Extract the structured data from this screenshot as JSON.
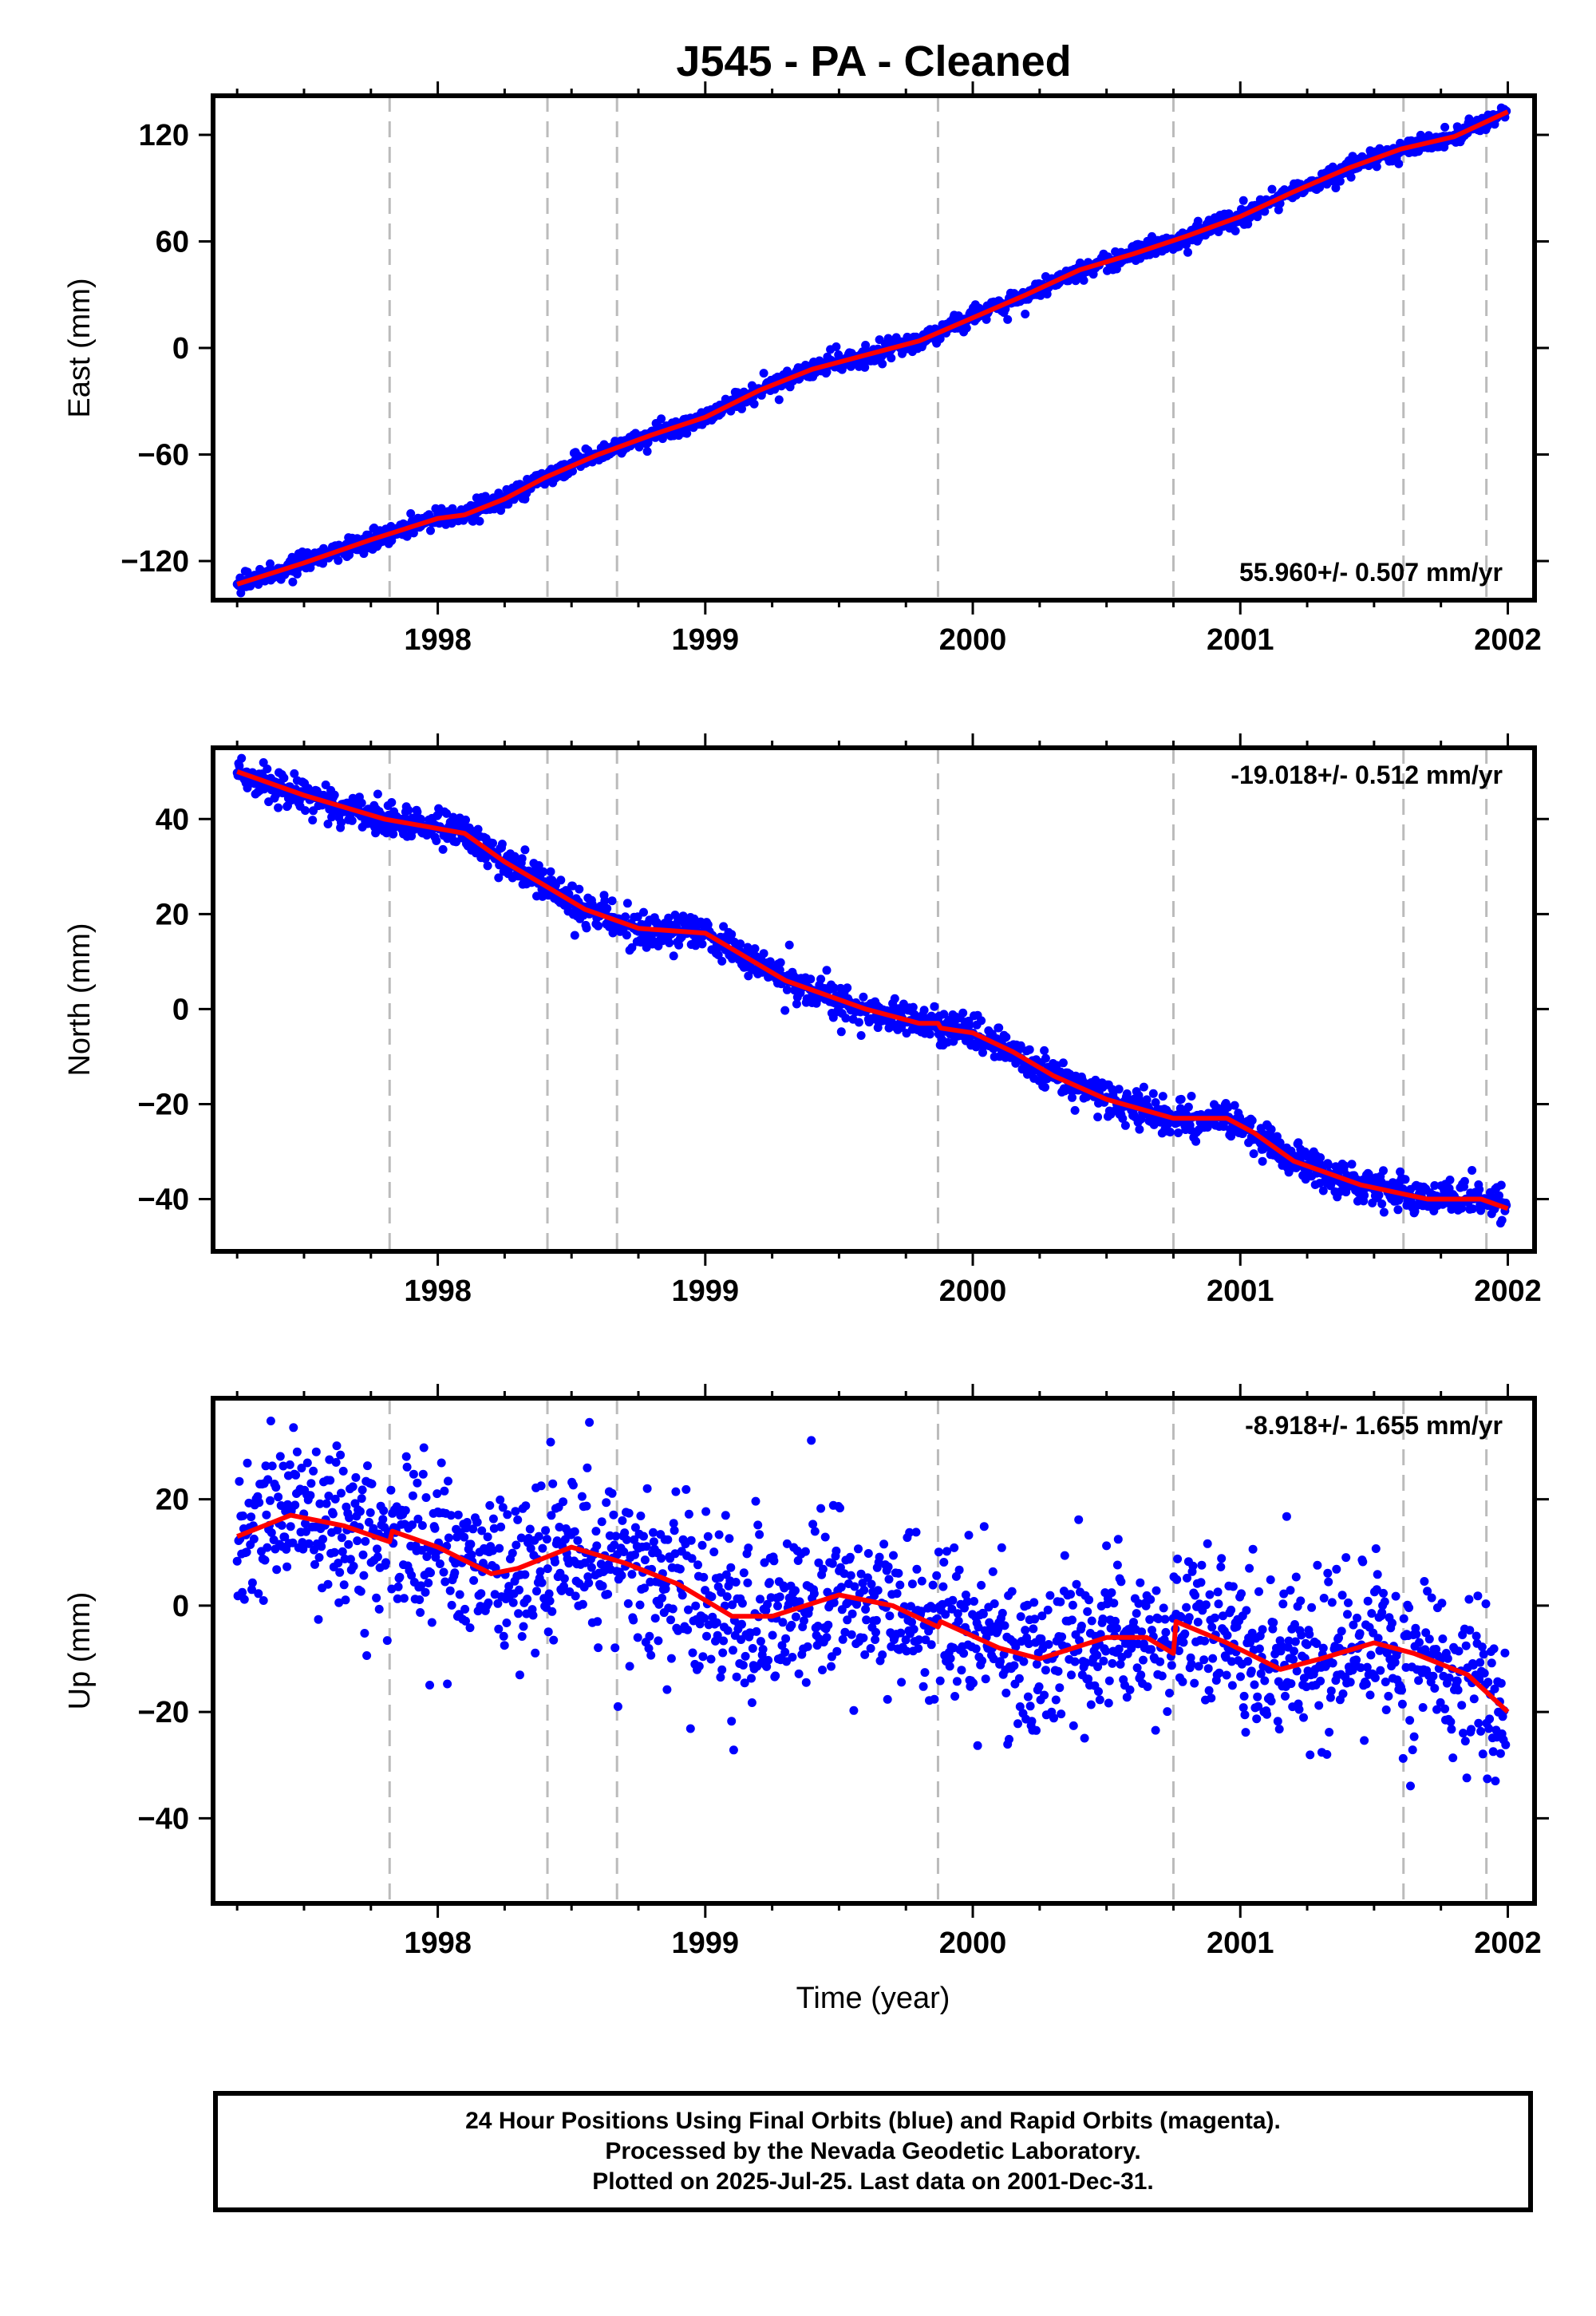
{
  "title": "J545  - PA - Cleaned",
  "xlabel": "Time (year)",
  "caption": [
    "24 Hour Positions Using Final Orbits (blue) and Rapid Orbits (magenta).",
    "Processed by the Nevada Geodetic Laboratory.",
    "Plotted on 2025-Jul-25. Last data on 2001-Dec-31."
  ],
  "colors": {
    "points": "#0000ff",
    "model": "#ff0000",
    "breaks": "#bbbbbb",
    "axis": "#000000"
  },
  "chart_data": [
    {
      "type": "scatter",
      "name": "east",
      "ylabel": "East (mm)",
      "rate_label": "55.960+/- 0.507 mm/yr",
      "xlim": [
        1997.16,
        2002.1
      ],
      "ylim": [
        -142,
        142
      ],
      "x_ticks": [
        "1998",
        "1999",
        "2000",
        "2001",
        "2002"
      ],
      "y_ticks": [
        "120",
        "60",
        "0",
        "−60",
        "−120"
      ],
      "y_tick_values": [
        120,
        60,
        0,
        -60,
        -120
      ],
      "x_start": 1997.25,
      "x_end": 2001.997,
      "breaks": [
        1997.82,
        1998.41,
        1998.67,
        1999.87,
        2000.75,
        2001.61,
        2001.92
      ],
      "model": [
        [
          1997.25,
          -133
        ],
        [
          1997.5,
          -121
        ],
        [
          1997.75,
          -108
        ],
        [
          1998.0,
          -96
        ],
        [
          1998.1,
          -94
        ],
        [
          1998.25,
          -85
        ],
        [
          1998.4,
          -73
        ],
        [
          1998.6,
          -60
        ],
        [
          1998.8,
          -49
        ],
        [
          1999.0,
          -39
        ],
        [
          1999.2,
          -24
        ],
        [
          1999.4,
          -12
        ],
        [
          1999.6,
          -4
        ],
        [
          1999.8,
          4
        ],
        [
          2000.0,
          17
        ],
        [
          2000.2,
          30
        ],
        [
          2000.4,
          44
        ],
        [
          2000.6,
          53
        ],
        [
          2000.8,
          63
        ],
        [
          2001.0,
          74
        ],
        [
          2001.2,
          88
        ],
        [
          2001.4,
          101
        ],
        [
          2001.6,
          112
        ],
        [
          2001.8,
          119
        ],
        [
          2002.0,
          133
        ]
      ],
      "noise": 2.5,
      "outlier_rate": 0.01,
      "outlier_size": 10
    },
    {
      "type": "scatter",
      "name": "north",
      "ylabel": "North (mm)",
      "rate_label": "-19.018+/- 0.512 mm/yr",
      "xlim": [
        1997.16,
        2002.1
      ],
      "ylim": [
        -51,
        55
      ],
      "x_ticks": [
        "1998",
        "1999",
        "2000",
        "2001",
        "2002"
      ],
      "y_ticks": [
        "40",
        "20",
        "0",
        "−20",
        "−40"
      ],
      "y_tick_values": [
        40,
        20,
        0,
        -20,
        -40
      ],
      "x_start": 1997.25,
      "x_end": 2001.997,
      "breaks": [
        1997.82,
        1998.41,
        1998.67,
        1999.87,
        2000.75,
        2001.61,
        2001.92
      ],
      "model": [
        [
          1997.25,
          50
        ],
        [
          1997.5,
          45
        ],
        [
          1997.8,
          40
        ],
        [
          1998.0,
          38
        ],
        [
          1998.1,
          37
        ],
        [
          1998.25,
          31
        ],
        [
          1998.4,
          26
        ],
        [
          1998.55,
          21
        ],
        [
          1998.75,
          17
        ],
        [
          1999.0,
          16
        ],
        [
          1999.15,
          11
        ],
        [
          1999.3,
          6
        ],
        [
          1999.6,
          0
        ],
        [
          1999.8,
          -3
        ],
        [
          1999.87,
          -3
        ],
        [
          1999.88,
          -4
        ],
        [
          2000.0,
          -5
        ],
        [
          2000.15,
          -9
        ],
        [
          2000.3,
          -14
        ],
        [
          2000.5,
          -19
        ],
        [
          2000.75,
          -23
        ],
        [
          2000.95,
          -23
        ],
        [
          2001.05,
          -26
        ],
        [
          2001.2,
          -32
        ],
        [
          2001.45,
          -37
        ],
        [
          2001.7,
          -40
        ],
        [
          2001.9,
          -40
        ],
        [
          2002.0,
          -42
        ]
      ],
      "noise": 1.8,
      "outlier_rate": 0.01,
      "outlier_size": 6
    },
    {
      "type": "scatter",
      "name": "up",
      "ylabel": "Up (mm)",
      "rate_label": "-8.918+/- 1.655 mm/yr",
      "xlim": [
        1997.16,
        2002.1
      ],
      "ylim": [
        -56,
        39
      ],
      "x_ticks": [
        "1998",
        "1999",
        "2000",
        "2001",
        "2002"
      ],
      "y_ticks": [
        "20",
        "0",
        "−20",
        "−40"
      ],
      "y_tick_values": [
        20,
        0,
        -20,
        -40
      ],
      "x_start": 1997.25,
      "x_end": 2001.997,
      "breaks": [
        1997.82,
        1998.41,
        1998.67,
        1999.87,
        2000.75,
        2001.61,
        2001.92
      ],
      "model": [
        [
          1997.25,
          13
        ],
        [
          1997.45,
          17
        ],
        [
          1997.65,
          15
        ],
        [
          1997.82,
          12
        ],
        [
          1997.83,
          14
        ],
        [
          1998.0,
          11
        ],
        [
          1998.2,
          6
        ],
        [
          1998.3,
          7
        ],
        [
          1998.5,
          11
        ],
        [
          1998.7,
          8
        ],
        [
          1998.9,
          4
        ],
        [
          1999.1,
          -2
        ],
        [
          1999.25,
          -2
        ],
        [
          1999.5,
          2
        ],
        [
          1999.7,
          0
        ],
        [
          1999.87,
          -4
        ],
        [
          1999.88,
          -3
        ],
        [
          2000.1,
          -8
        ],
        [
          2000.25,
          -10
        ],
        [
          2000.5,
          -6
        ],
        [
          2000.65,
          -6
        ],
        [
          2000.75,
          -9
        ],
        [
          2000.76,
          -3
        ],
        [
          2000.95,
          -7
        ],
        [
          2001.15,
          -12
        ],
        [
          2001.3,
          -10
        ],
        [
          2001.5,
          -7
        ],
        [
          2001.65,
          -9
        ],
        [
          2001.85,
          -13
        ],
        [
          2002.0,
          -20
        ]
      ],
      "noise": 7.5,
      "outlier_rate": 0.03,
      "outlier_size": 18
    }
  ]
}
